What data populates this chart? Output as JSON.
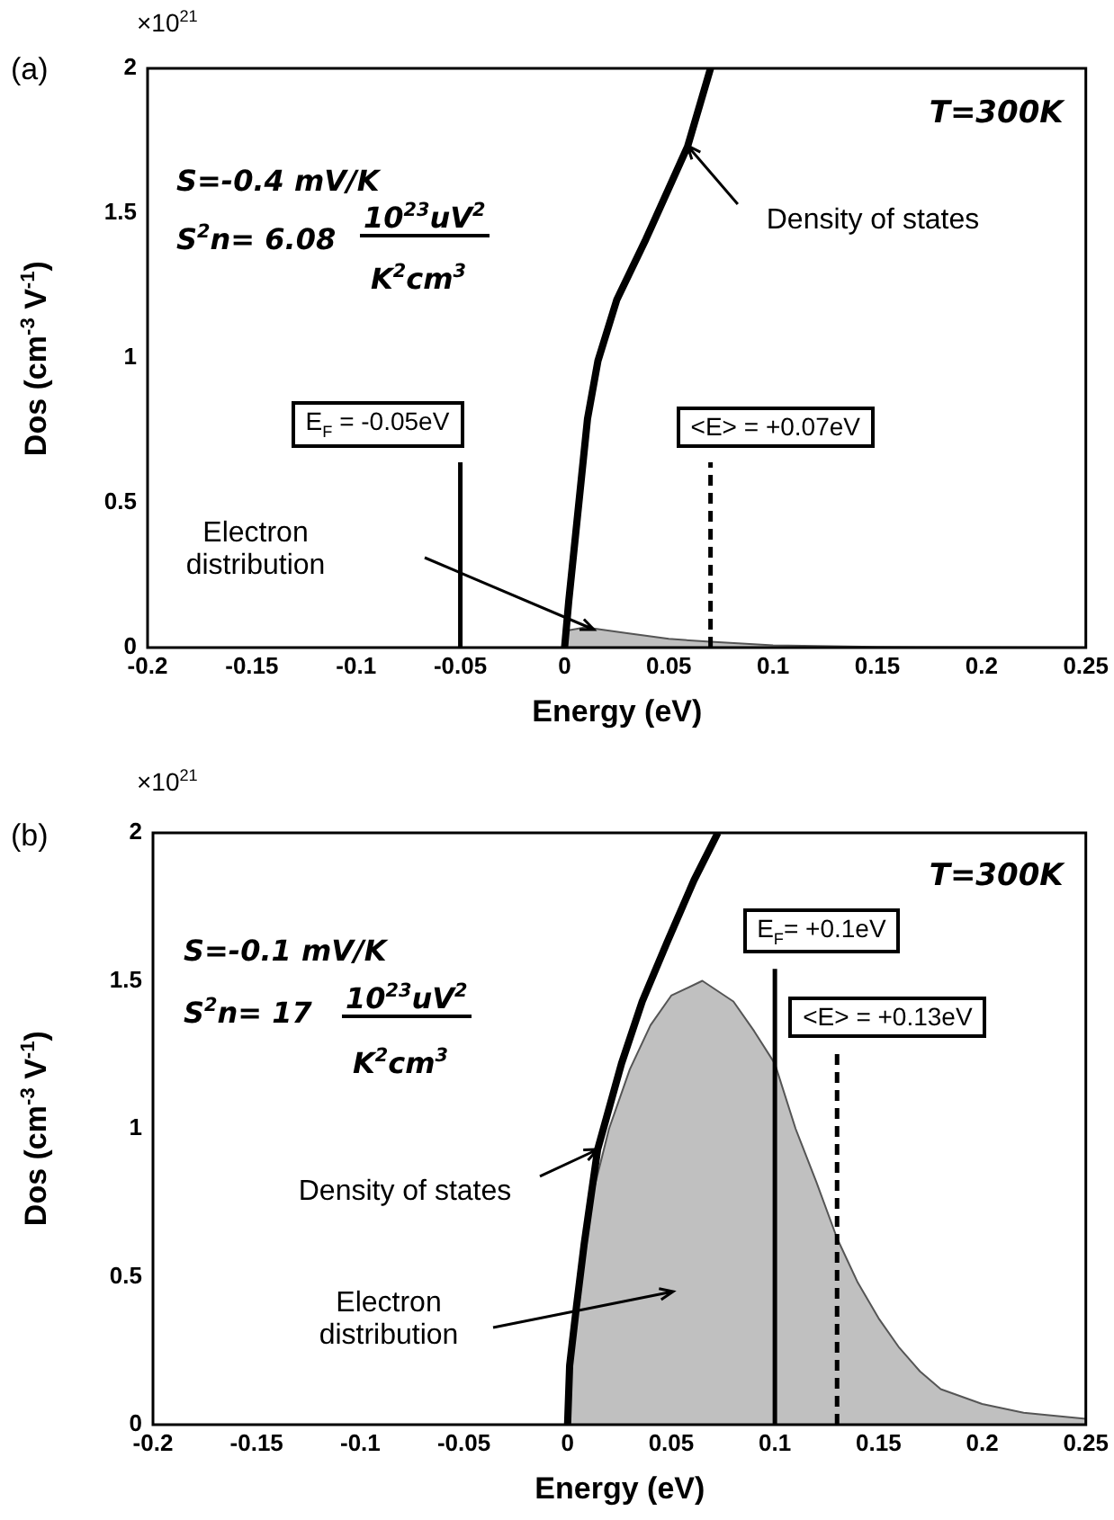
{
  "chart_data": [
    {
      "type": "line",
      "xlabel": "Energy (eV)",
      "ylabel": "Dos (cm$^{-3}$ V$^{-1}$)",
      "xlim": [
        -0.2,
        0.25
      ],
      "xticks": [
        -0.2,
        -0.15,
        -0.1,
        -0.05,
        0,
        0.05,
        0.1,
        0.15,
        0.2,
        0.25
      ],
      "ylim": [
        0,
        2
      ],
      "yticks": [
        0,
        0.5,
        1,
        1.5,
        2
      ],
      "marker": "none",
      "series": [
        {
          "type": "area",
          "color": "#c0c0c0",
          "x": [
            0,
            0.002,
            0.01,
            0.03,
            0.05,
            0.07,
            0.1,
            0.15,
            0.25
          ],
          "values": [
            0,
            0.06,
            0.07,
            0.05,
            0.03,
            0.02,
            0.008,
            0.002,
            0
          ]
        },
        {
          "type": "line",
          "color": "#000000",
          "x": [
            0,
            0.002,
            0.005,
            0.008,
            0.011,
            0.016,
            0.025,
            0.039,
            0.059,
            0.07
          ],
          "values": [
            0,
            0.16,
            0.37,
            0.58,
            0.79,
            0.99,
            1.2,
            1.41,
            1.73,
            2
          ]
        }
      ],
      "ref_lines": [
        {
          "axis": "x",
          "value": -0.05,
          "label": "E$_{F}$ = -0.05eV",
          "line_style": "solid"
        },
        {
          "axis": "x",
          "value": 0.07,
          "label": "<E> = +0.07eV",
          "line_style": "dashed"
        }
      ],
      "annotations": [
        "(a)",
        "×10$^{21}$",
        "T=300K",
        "S=-0.4 mV/K",
        "S$^{2}$n= 6.08",
        "10$^{23}$uV$^{2}$",
        "K$^{2}$cm$^{3}$",
        {
          "text": "Density of states",
          "x": 0.059,
          "y": 1.73
        },
        "Electron distribution"
      ]
    },
    {
      "type": "line",
      "xlabel": "Energy (eV)",
      "ylabel": "Dos (cm$^{-3}$ V$^{-1}$)",
      "xlim": [
        -0.2,
        0.25
      ],
      "xticks": [
        -0.2,
        -0.15,
        -0.1,
        -0.05,
        0,
        0.05,
        0.1,
        0.15,
        0.2,
        0.25
      ],
      "ylim": [
        0,
        2
      ],
      "yticks": [
        0,
        0.5,
        1,
        1.5,
        2
      ],
      "marker": "none",
      "series": [
        {
          "type": "area",
          "color": "#c0c0c0",
          "x": [
            0,
            0.005,
            0.01,
            0.02,
            0.03,
            0.04,
            0.05,
            0.065,
            0.08,
            0.09,
            0.1,
            0.11,
            0.12,
            0.13,
            0.14,
            0.15,
            0.16,
            0.17,
            0.18,
            0.2,
            0.22,
            0.25
          ],
          "values": [
            0,
            0.5,
            0.72,
            1.0,
            1.2,
            1.35,
            1.45,
            1.5,
            1.43,
            1.33,
            1.22,
            1.0,
            0.82,
            0.63,
            0.48,
            0.36,
            0.26,
            0.18,
            0.12,
            0.07,
            0.04,
            0.02
          ]
        },
        {
          "type": "line",
          "color": "#000000",
          "x": [
            0,
            0.001,
            0.0043,
            0.008,
            0.0145,
            0.026,
            0.036,
            0.048,
            0.061,
            0.0725
          ],
          "values": [
            0,
            0.2,
            0.4,
            0.61,
            0.93,
            1.22,
            1.43,
            1.63,
            1.84,
            2
          ]
        }
      ],
      "ref_lines": [
        {
          "axis": "x",
          "value": 0.1,
          "label": "E$_{F}$= +0.1eV",
          "line_style": "solid"
        },
        {
          "axis": "x",
          "value": 0.13,
          "label": "<E> = +0.13eV",
          "line_style": "dashed"
        }
      ],
      "annotations": [
        "(b)",
        "×10$^{21}$",
        "T=300K",
        "S=-0.1 mV/K",
        "S$^{2}$n= 17",
        "10$^{23}$uV$^{2}$",
        "K$^{2}$cm$^{3}$",
        {
          "text": "Density of states",
          "x": 0.0145,
          "y": 0.93
        },
        "Electron distribution"
      ]
    }
  ]
}
